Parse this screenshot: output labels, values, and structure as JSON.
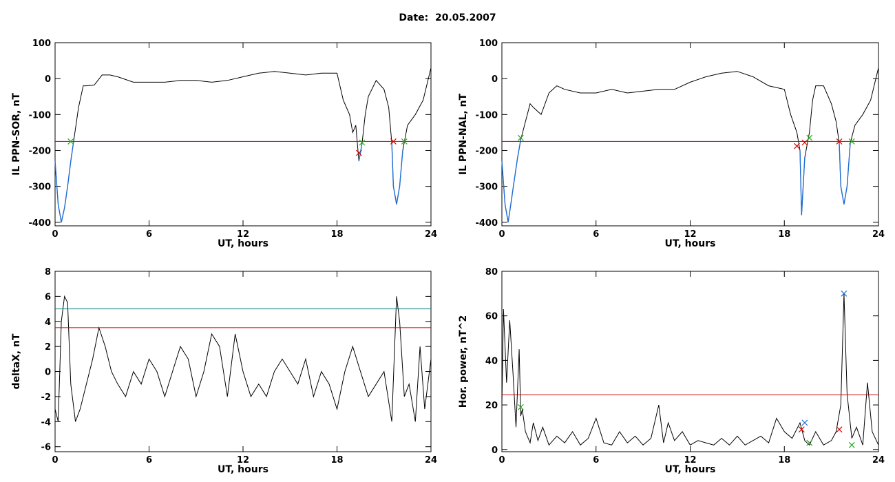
{
  "header": {
    "title": "Date:  20.05.2007"
  },
  "colors": {
    "trace": "#000000",
    "threshold_red": "#cc0000",
    "threshold_teal": "#008080",
    "highlight": "#1f6fd6",
    "marker_green": "#22aa22",
    "marker_red": "#cc0000",
    "marker_blue": "#1f6fd6"
  },
  "chart_data": [
    {
      "type": "line",
      "ylabel": "IL PPN-SOR, nT",
      "xlabel": "UT, hours",
      "xlim": [
        0,
        24
      ],
      "ylim": [
        -410,
        100
      ],
      "xticks": [
        0,
        6,
        12,
        18,
        24
      ],
      "yticks": [
        -400,
        -300,
        -200,
        -100,
        0,
        100
      ],
      "series": [
        {
          "x": [
            0,
            0.2,
            0.4,
            0.6,
            0.8,
            1.0,
            1.2,
            1.5,
            1.8,
            2.0,
            2.5,
            3.0,
            3.5,
            4,
            5,
            6,
            7,
            8,
            9,
            10,
            11,
            12,
            13,
            14,
            15,
            16,
            17,
            18,
            18.4,
            18.8,
            19.0,
            19.2,
            19.4,
            19.6,
            19.8,
            20.0,
            20.5,
            21.0,
            21.3,
            21.5,
            21.6,
            21.8,
            22.0,
            22.2,
            22.5,
            23,
            23.5,
            24
          ],
          "y": [
            -230,
            -350,
            -400,
            -360,
            -300,
            -230,
            -170,
            -80,
            -20,
            -20,
            -18,
            10,
            10,
            5,
            -10,
            -10,
            -10,
            -5,
            -5,
            -10,
            -5,
            5,
            15,
            20,
            15,
            10,
            15,
            15,
            -60,
            -100,
            -150,
            -130,
            -230,
            -180,
            -100,
            -50,
            -5,
            -30,
            -80,
            -180,
            -300,
            -350,
            -300,
            -200,
            -130,
            -100,
            -60,
            30
          ],
          "highlight_ranges": [
            [
              0,
              1.2
            ],
            [
              19.3,
              19.6
            ],
            [
              21.5,
              22.4
            ]
          ]
        }
      ],
      "hlines": [
        {
          "y": -175,
          "color": "#cc0000"
        }
      ],
      "markers": [
        {
          "x": 1.0,
          "y": -175,
          "color": "#22aa22"
        },
        {
          "x": 19.4,
          "y": -207,
          "color": "#cc0000"
        },
        {
          "x": 19.6,
          "y": -178,
          "color": "#22aa22"
        },
        {
          "x": 21.6,
          "y": -175,
          "color": "#cc0000"
        },
        {
          "x": 22.3,
          "y": -175,
          "color": "#22aa22"
        }
      ]
    },
    {
      "type": "line",
      "ylabel": "IL PPN-NAL, nT",
      "xlabel": "UT, hours",
      "xlim": [
        0,
        24
      ],
      "ylim": [
        -410,
        100
      ],
      "xticks": [
        0,
        6,
        12,
        18,
        24
      ],
      "yticks": [
        -400,
        -300,
        -200,
        -100,
        0,
        100
      ],
      "series": [
        {
          "x": [
            0,
            0.2,
            0.4,
            0.6,
            0.8,
            1.0,
            1.2,
            1.5,
            1.8,
            2.0,
            2.5,
            3.0,
            3.5,
            4,
            5,
            6,
            7,
            8,
            9,
            10,
            11,
            12,
            13,
            14,
            15,
            16,
            17,
            18,
            18.4,
            18.8,
            19.0,
            19.1,
            19.3,
            19.6,
            19.8,
            20.0,
            20.5,
            21.0,
            21.3,
            21.5,
            21.6,
            21.8,
            22.0,
            22.2,
            22.5,
            23,
            23.5,
            24
          ],
          "y": [
            -230,
            -350,
            -400,
            -340,
            -280,
            -220,
            -170,
            -120,
            -70,
            -80,
            -100,
            -40,
            -20,
            -30,
            -40,
            -40,
            -30,
            -40,
            -35,
            -30,
            -30,
            -10,
            5,
            15,
            20,
            5,
            -20,
            -30,
            -100,
            -150,
            -200,
            -380,
            -220,
            -150,
            -60,
            -20,
            -20,
            -70,
            -120,
            -180,
            -300,
            -350,
            -300,
            -180,
            -130,
            -100,
            -60,
            30
          ],
          "highlight_ranges": [
            [
              0,
              1.2
            ],
            [
              19.0,
              19.4
            ],
            [
              21.5,
              22.4
            ]
          ]
        }
      ],
      "hlines": [
        {
          "y": -175,
          "color": "#cc0000"
        }
      ],
      "markers": [
        {
          "x": 1.2,
          "y": -165,
          "color": "#22aa22"
        },
        {
          "x": 18.8,
          "y": -188,
          "color": "#cc0000"
        },
        {
          "x": 19.3,
          "y": -178,
          "color": "#cc0000"
        },
        {
          "x": 19.6,
          "y": -165,
          "color": "#22aa22"
        },
        {
          "x": 21.5,
          "y": -175,
          "color": "#cc0000"
        },
        {
          "x": 22.3,
          "y": -175,
          "color": "#22aa22"
        }
      ]
    },
    {
      "type": "line",
      "ylabel": "deltaX, nT",
      "xlabel": "UT, hours",
      "xlim": [
        0,
        24
      ],
      "ylim": [
        -6.4,
        8
      ],
      "xticks": [
        0,
        6,
        12,
        18,
        24
      ],
      "yticks": [
        -6,
        -4,
        -2,
        0,
        2,
        4,
        6,
        8
      ],
      "series": [
        {
          "x": [
            0,
            0.2,
            0.4,
            0.6,
            0.8,
            1.0,
            1.3,
            1.6,
            2.0,
            2.4,
            2.8,
            3.2,
            3.6,
            4.0,
            4.5,
            5.0,
            5.5,
            6.0,
            6.5,
            7.0,
            7.5,
            8.0,
            8.5,
            9.0,
            9.5,
            10.0,
            10.5,
            11.0,
            11.5,
            12.0,
            12.5,
            13.0,
            13.5,
            14.0,
            14.5,
            15.0,
            15.5,
            16.0,
            16.5,
            17.0,
            17.5,
            18.0,
            18.5,
            19.0,
            19.5,
            20.0,
            20.5,
            21.0,
            21.5,
            21.8,
            22.0,
            22.3,
            22.6,
            23.0,
            23.3,
            23.6,
            24.0
          ],
          "y": [
            -3,
            -4,
            4,
            6,
            5.5,
            -1,
            -4,
            -3,
            -1,
            1,
            3.5,
            2,
            0,
            -1,
            -2,
            0,
            -1,
            1,
            0,
            -2,
            0,
            2,
            1,
            -2,
            0,
            3,
            2,
            -2,
            3,
            0,
            -2,
            -1,
            -2,
            0,
            1,
            0,
            -1,
            1,
            -2,
            0,
            -1,
            -3,
            0,
            2,
            0,
            -2,
            -1,
            0,
            -4,
            6,
            4,
            -2,
            -1,
            -4,
            2,
            -3,
            1
          ]
        }
      ],
      "hlines": [
        {
          "y": 5,
          "color": "#008080"
        },
        {
          "y": 3.5,
          "color": "#cc0000"
        }
      ],
      "markers": []
    },
    {
      "type": "line",
      "ylabel": "Hor. power, nT^2",
      "xlabel": "UT, hours",
      "xlim": [
        0,
        24
      ],
      "ylim": [
        -1,
        80
      ],
      "xticks": [
        0,
        6,
        12,
        18,
        24
      ],
      "yticks": [
        0,
        20,
        40,
        60,
        80
      ],
      "series": [
        {
          "x": [
            0,
            0.1,
            0.3,
            0.5,
            0.7,
            0.9,
            1.1,
            1.2,
            1.3,
            1.5,
            1.8,
            2.0,
            2.3,
            2.6,
            3.0,
            3.5,
            4,
            4.5,
            5,
            5.5,
            6,
            6.5,
            7,
            7.5,
            8,
            8.5,
            9,
            9.5,
            10,
            10.3,
            10.6,
            11,
            11.5,
            12,
            12.5,
            13,
            13.5,
            14,
            14.5,
            15,
            15.5,
            16,
            16.5,
            17,
            17.5,
            18,
            18.5,
            19,
            19.3,
            19.6,
            20,
            20.5,
            21,
            21.3,
            21.6,
            21.8,
            22.0,
            22.3,
            22.6,
            23,
            23.3,
            23.6,
            24
          ],
          "y": [
            20,
            63,
            30,
            58,
            35,
            10,
            45,
            15,
            18,
            8,
            3,
            12,
            4,
            10,
            2,
            6,
            3,
            8,
            2,
            5,
            14,
            3,
            2,
            8,
            3,
            6,
            2,
            5,
            20,
            3,
            12,
            4,
            8,
            2,
            4,
            3,
            2,
            5,
            2,
            6,
            2,
            4,
            6,
            3,
            14,
            8,
            5,
            12,
            4,
            2,
            8,
            2,
            4,
            8,
            20,
            70,
            25,
            5,
            10,
            2,
            30,
            8,
            2
          ]
        }
      ],
      "hlines": [
        {
          "y": 24.5,
          "color": "#cc0000"
        }
      ],
      "markers": [
        {
          "x": 1.2,
          "y": 19,
          "color": "#22aa22"
        },
        {
          "x": 19.3,
          "y": 12,
          "color": "#1f6fd6"
        },
        {
          "x": 19.1,
          "y": 9,
          "color": "#cc0000"
        },
        {
          "x": 19.6,
          "y": 3,
          "color": "#22aa22"
        },
        {
          "x": 21.5,
          "y": 9,
          "color": "#cc0000"
        },
        {
          "x": 21.8,
          "y": 70,
          "color": "#1f6fd6"
        },
        {
          "x": 22.3,
          "y": 2,
          "color": "#22aa22"
        }
      ]
    }
  ]
}
